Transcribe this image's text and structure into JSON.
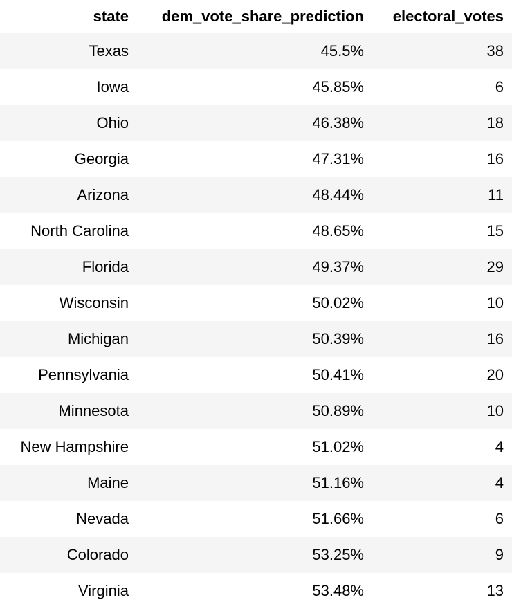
{
  "table": {
    "columns": [
      "state",
      "dem_vote_share_prediction",
      "electoral_votes"
    ],
    "rows": [
      {
        "state": "Texas",
        "dem_vote_share_prediction": "45.5%",
        "electoral_votes": "38"
      },
      {
        "state": "Iowa",
        "dem_vote_share_prediction": "45.85%",
        "electoral_votes": "6"
      },
      {
        "state": "Ohio",
        "dem_vote_share_prediction": "46.38%",
        "electoral_votes": "18"
      },
      {
        "state": "Georgia",
        "dem_vote_share_prediction": "47.31%",
        "electoral_votes": "16"
      },
      {
        "state": "Arizona",
        "dem_vote_share_prediction": "48.44%",
        "electoral_votes": "11"
      },
      {
        "state": "North Carolina",
        "dem_vote_share_prediction": "48.65%",
        "electoral_votes": "15"
      },
      {
        "state": "Florida",
        "dem_vote_share_prediction": "49.37%",
        "electoral_votes": "29"
      },
      {
        "state": "Wisconsin",
        "dem_vote_share_prediction": "50.02%",
        "electoral_votes": "10"
      },
      {
        "state": "Michigan",
        "dem_vote_share_prediction": "50.39%",
        "electoral_votes": "16"
      },
      {
        "state": "Pennsylvania",
        "dem_vote_share_prediction": "50.41%",
        "electoral_votes": "20"
      },
      {
        "state": "Minnesota",
        "dem_vote_share_prediction": "50.89%",
        "electoral_votes": "10"
      },
      {
        "state": "New Hampshire",
        "dem_vote_share_prediction": "51.02%",
        "electoral_votes": "4"
      },
      {
        "state": "Maine",
        "dem_vote_share_prediction": "51.16%",
        "electoral_votes": "4"
      },
      {
        "state": "Nevada",
        "dem_vote_share_prediction": "51.66%",
        "electoral_votes": "6"
      },
      {
        "state": "Colorado",
        "dem_vote_share_prediction": "53.25%",
        "electoral_votes": "9"
      },
      {
        "state": "Virginia",
        "dem_vote_share_prediction": "53.48%",
        "electoral_votes": "13"
      }
    ]
  },
  "colors": {
    "stripe": "#f5f5f5",
    "background": "#ffffff",
    "text": "#000000"
  }
}
